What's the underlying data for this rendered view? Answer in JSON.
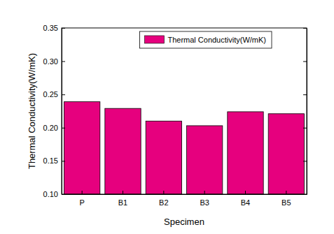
{
  "chart_data": {
    "type": "bar",
    "x_label": "Specimen",
    "y_label": "Thermal Conductivity(W/mK)",
    "categories": [
      "P",
      "B1",
      "B2",
      "B3",
      "B4",
      "B5"
    ],
    "series": [
      {
        "name": "Thermal Conductivity(W/mK)",
        "color": "#e6007e",
        "values": [
          0.239,
          0.229,
          0.21,
          0.203,
          0.224,
          0.221
        ]
      }
    ],
    "ylim": [
      0.1,
      0.35
    ],
    "yticks": [
      {
        "value": 0.1,
        "label": "0.10"
      },
      0.15,
      {
        "value": 0.2,
        "label": "0.20"
      },
      0.25,
      {
        "value": 0.3,
        "label": "0.30"
      },
      0.35
    ],
    "grid": false,
    "legend": "upper right"
  }
}
